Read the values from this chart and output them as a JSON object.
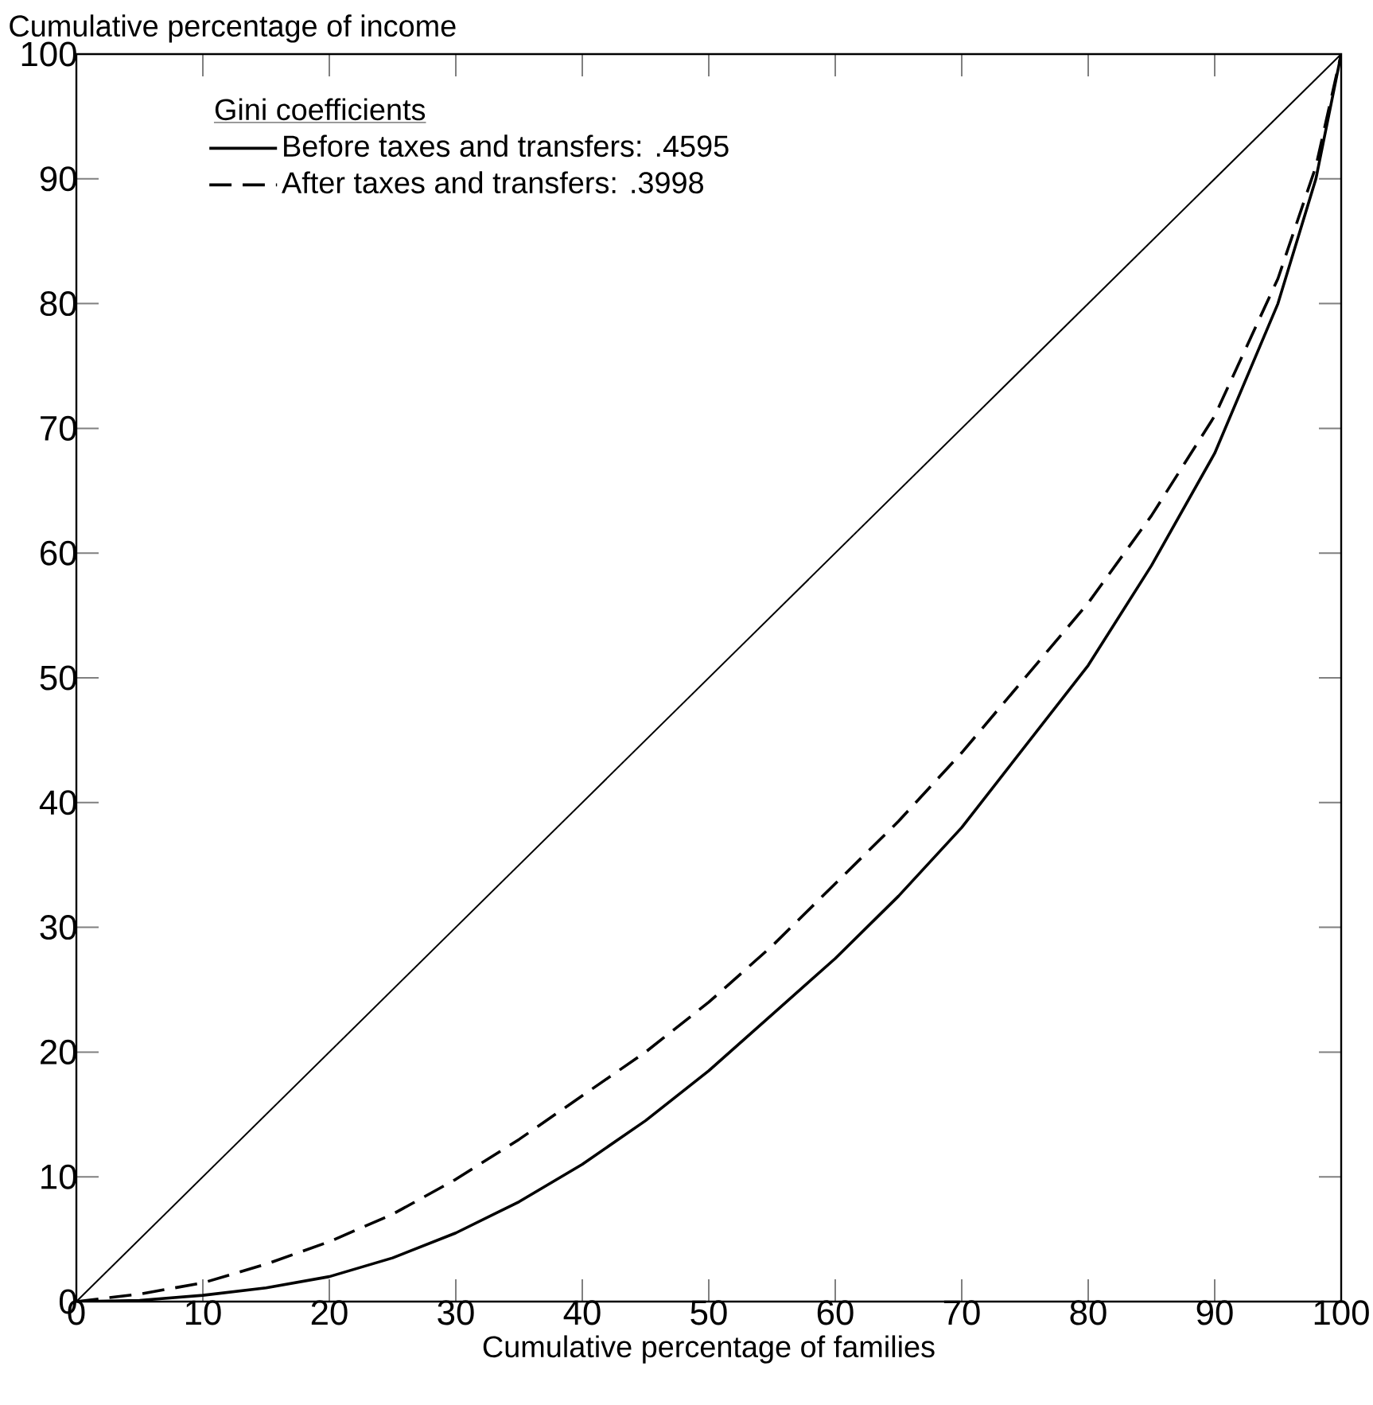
{
  "chart_data": {
    "type": "line",
    "xlabel": "Cumulative percentage of families",
    "ylabel": "Cumulative percentage of income",
    "legend_title": "Gini coefficients",
    "legend": "top left",
    "marker": "none",
    "grid": false,
    "xlim": [
      0,
      100
    ],
    "ylim": [
      0,
      100
    ],
    "xticks": [
      0,
      10,
      20,
      30,
      40,
      50,
      60,
      70,
      80,
      90,
      100
    ],
    "yticks": [
      0,
      10,
      20,
      30,
      40,
      50,
      60,
      70,
      80,
      90,
      100
    ],
    "series": [
      {
        "name": "Before taxes and transfers:  .4595",
        "color": "#000000",
        "line_style": "solid",
        "x": [
          0,
          5,
          10,
          15,
          20,
          25,
          30,
          35,
          40,
          45,
          50,
          55,
          60,
          65,
          70,
          75,
          80,
          85,
          90,
          95,
          98,
          100
        ],
        "values": [
          0,
          0.1,
          0.5,
          1.1,
          2,
          3.5,
          5.5,
          8,
          11,
          14.5,
          18.5,
          23,
          27.5,
          32.5,
          38,
          44.5,
          51,
          59,
          68,
          80,
          90,
          100
        ]
      },
      {
        "name": "After taxes and transfers:   .3998",
        "color": "#000000",
        "line_style": "dashed",
        "x": [
          0,
          5,
          10,
          15,
          20,
          25,
          30,
          35,
          40,
          45,
          50,
          55,
          60,
          65,
          70,
          75,
          80,
          85,
          90,
          95,
          98,
          100
        ],
        "values": [
          0,
          0.6,
          1.5,
          3,
          4.8,
          7,
          9.8,
          13,
          16.5,
          20,
          24,
          28.5,
          33.5,
          38.5,
          44,
          50,
          56,
          63,
          71,
          82,
          91,
          100
        ]
      },
      {
        "color": "#000000",
        "line_style": "solid",
        "x": [
          0,
          100
        ],
        "values": [
          0,
          100
        ]
      }
    ]
  }
}
